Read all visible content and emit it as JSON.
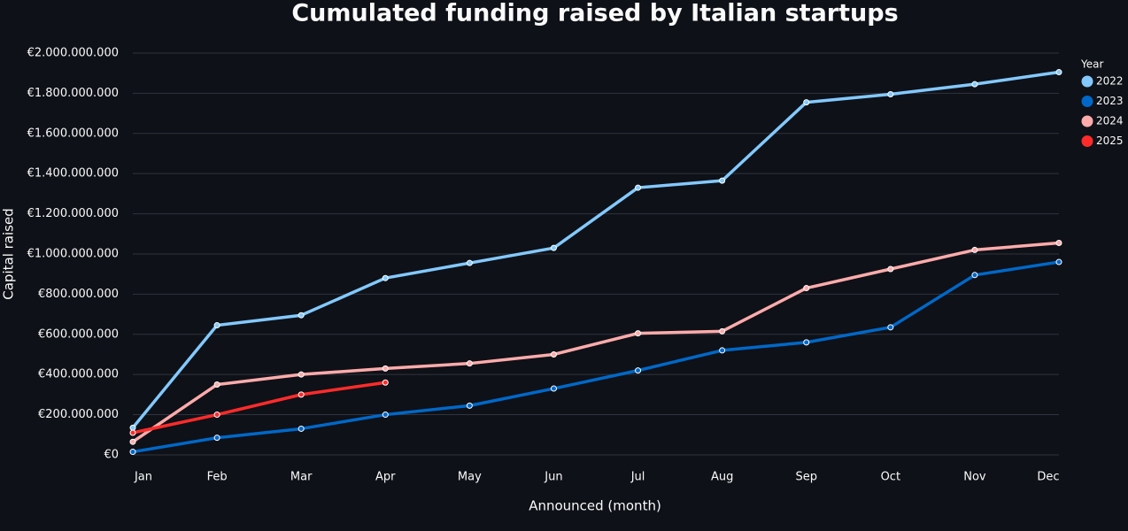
{
  "chart_data": {
    "type": "line",
    "title": "Cumulated funding raised by Italian startups",
    "x_label": "Announced (month)",
    "y_label": "Capital raised",
    "legend_title": "Year",
    "legend_position": "right",
    "grid": true,
    "categories": [
      "Jan",
      "Feb",
      "Mar",
      "Apr",
      "May",
      "Jun",
      "Jul",
      "Aug",
      "Sep",
      "Oct",
      "Nov",
      "Dec"
    ],
    "ylim": [
      -20000000,
      2040000000
    ],
    "yticks": [
      {
        "value": 0,
        "label": "€0"
      },
      {
        "value": 200000000,
        "label": "€200.000.000"
      },
      {
        "value": 400000000,
        "label": "€400.000.000"
      },
      {
        "value": 600000000,
        "label": "€600.000.000"
      },
      {
        "value": 800000000,
        "label": "€800.000.000"
      },
      {
        "value": 1000000000,
        "label": "€1.000.000.000"
      },
      {
        "value": 1200000000,
        "label": "€1.200.000.000"
      },
      {
        "value": 1400000000,
        "label": "€1.400.000.000"
      },
      {
        "value": 1600000000,
        "label": "€1.600.000.000"
      },
      {
        "value": 1800000000,
        "label": "€1.800.000.000"
      },
      {
        "value": 2000000000,
        "label": "€2.000.000.000"
      }
    ],
    "series": [
      {
        "name": "2022",
        "color": "#83c9ff",
        "values": [
          135000000,
          645000000,
          695000000,
          880000000,
          955000000,
          1030000000,
          1330000000,
          1365000000,
          1755000000,
          1795000000,
          1845000000,
          1905000000
        ]
      },
      {
        "name": "2023",
        "color": "#0068c9",
        "values": [
          15000000,
          85000000,
          130000000,
          200000000,
          245000000,
          330000000,
          420000000,
          520000000,
          560000000,
          635000000,
          895000000,
          960000000
        ]
      },
      {
        "name": "2024",
        "color": "#ffabab",
        "values": [
          65000000,
          350000000,
          400000000,
          430000000,
          455000000,
          500000000,
          605000000,
          615000000,
          830000000,
          925000000,
          1020000000,
          1055000000
        ]
      },
      {
        "name": "2025",
        "color": "#ff2b2b",
        "values": [
          110000000,
          200000000,
          300000000,
          360000000,
          null,
          null,
          null,
          null,
          null,
          null,
          null,
          null
        ]
      }
    ]
  }
}
